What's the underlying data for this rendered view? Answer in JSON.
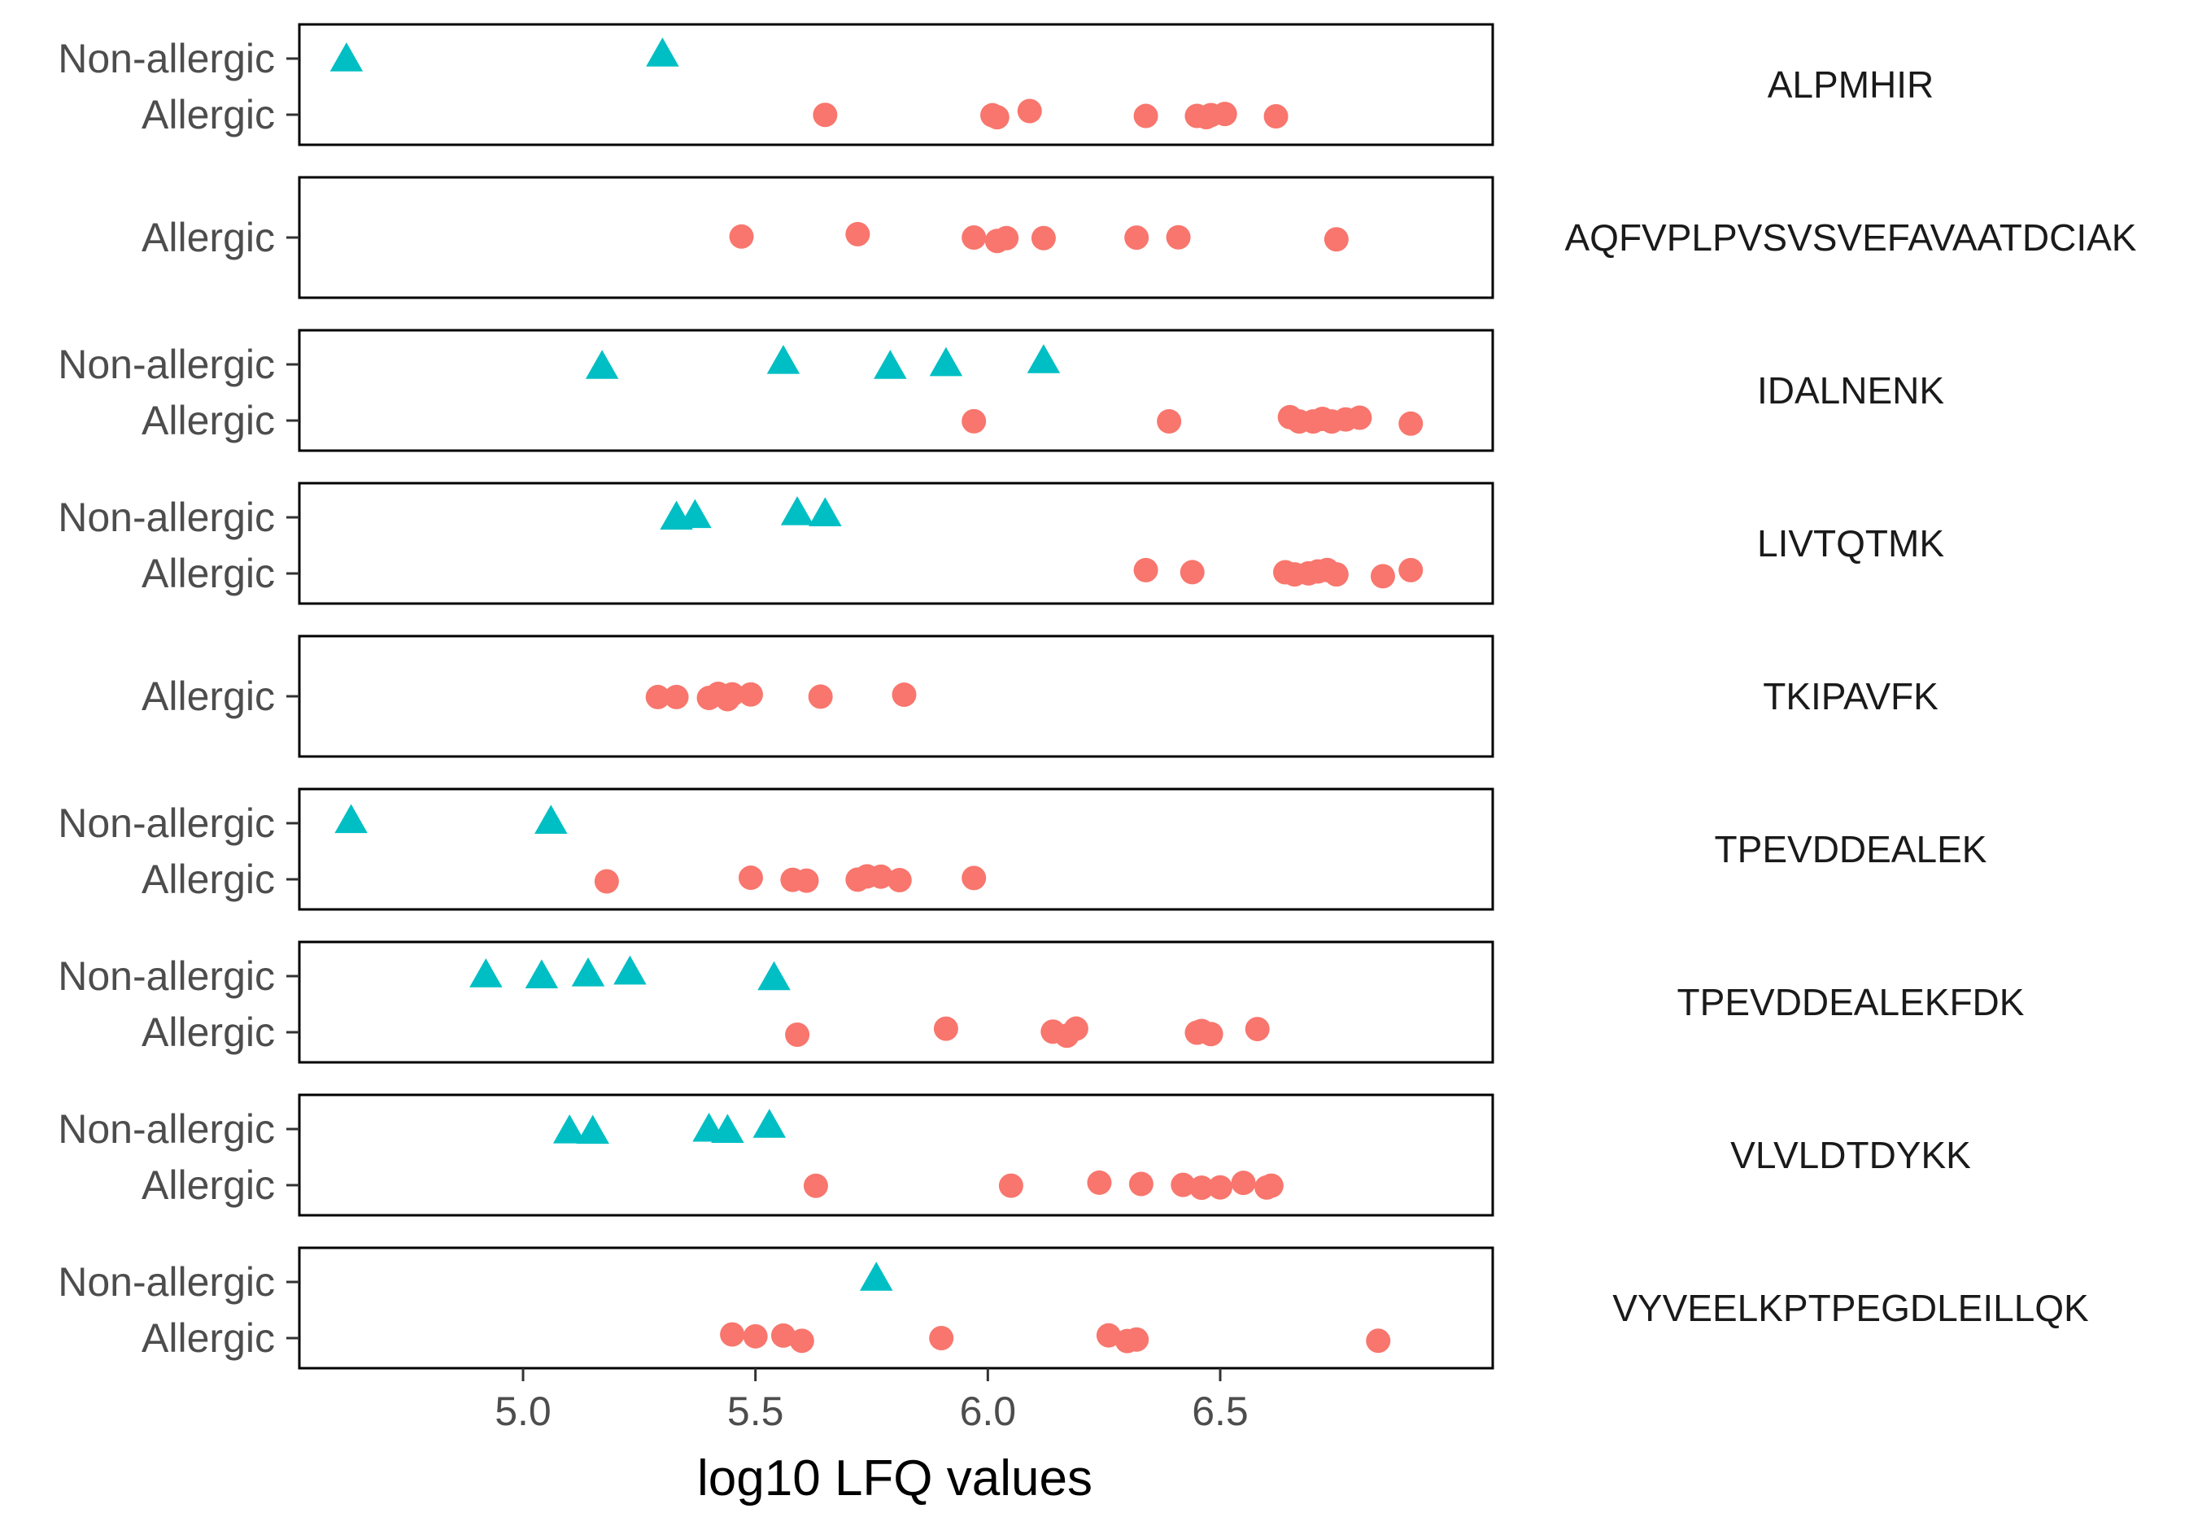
{
  "chart_data": {
    "type": "scatter",
    "xlabel": "log10 LFQ values",
    "ylabel": "",
    "xlim": [
      4.5,
      7.0
    ],
    "x_ticks": [
      "5.0",
      "5.5",
      "6.0",
      "6.5"
    ],
    "x_tick_values": [
      5.0,
      5.5,
      6.0,
      6.5
    ],
    "groups": [
      "Non-allergic",
      "Allergic"
    ],
    "colors": {
      "Non-allergic": "#00bfc4",
      "Allergic": "#f8766d"
    },
    "shapes": {
      "Non-allergic": "triangle",
      "Allergic": "circle"
    },
    "grid": false,
    "legend": "none",
    "panels": [
      {
        "label": "ALPMHIR",
        "series": [
          {
            "group": "Non-allergic",
            "x": [
              4.62,
              5.3
            ]
          },
          {
            "group": "Allergic",
            "x": [
              5.65,
              6.01,
              6.02,
              6.09,
              6.34,
              6.45,
              6.47,
              6.48,
              6.51,
              6.62
            ]
          }
        ]
      },
      {
        "label": "AQFVPLPVSVSVEFAVAATDCIAK",
        "series": [
          {
            "group": "Allergic",
            "x": [
              5.47,
              5.72,
              5.97,
              6.02,
              6.04,
              6.12,
              6.32,
              6.41,
              6.75
            ]
          }
        ]
      },
      {
        "label": "IDALNENK",
        "series": [
          {
            "group": "Non-allergic",
            "x": [
              5.17,
              5.56,
              5.79,
              5.91,
              6.12
            ]
          },
          {
            "group": "Allergic",
            "x": [
              5.97,
              6.39,
              6.65,
              6.67,
              6.7,
              6.72,
              6.74,
              6.77,
              6.8,
              6.91
            ]
          }
        ]
      },
      {
        "label": "LIVTQTMK",
        "series": [
          {
            "group": "Non-allergic",
            "x": [
              5.33,
              5.37,
              5.59,
              5.65
            ]
          },
          {
            "group": "Allergic",
            "x": [
              6.34,
              6.44,
              6.64,
              6.66,
              6.69,
              6.71,
              6.73,
              6.75,
              6.85,
              6.91
            ]
          }
        ]
      },
      {
        "label": "TKIPAVFK",
        "series": [
          {
            "group": "Allergic",
            "x": [
              5.29,
              5.33,
              5.4,
              5.42,
              5.44,
              5.45,
              5.49,
              5.64,
              5.82
            ]
          }
        ]
      },
      {
        "label": "TPEVDDEALEK",
        "series": [
          {
            "group": "Non-allergic",
            "x": [
              4.63,
              5.06
            ]
          },
          {
            "group": "Allergic",
            "x": [
              5.18,
              5.49,
              5.58,
              5.61,
              5.72,
              5.74,
              5.77,
              5.81,
              5.97
            ]
          }
        ]
      },
      {
        "label": "TPEVDDEALEKFDK",
        "series": [
          {
            "group": "Non-allergic",
            "x": [
              4.92,
              5.04,
              5.14,
              5.23,
              5.54
            ]
          },
          {
            "group": "Allergic",
            "x": [
              5.59,
              5.91,
              6.14,
              6.17,
              6.19,
              6.45,
              6.46,
              6.48,
              6.58
            ]
          }
        ]
      },
      {
        "label": "VLVLDTDYKK",
        "series": [
          {
            "group": "Non-allergic",
            "x": [
              5.1,
              5.15,
              5.4,
              5.44,
              5.53
            ]
          },
          {
            "group": "Allergic",
            "x": [
              5.63,
              6.05,
              6.24,
              6.33,
              6.42,
              6.46,
              6.5,
              6.55,
              6.6,
              6.61
            ]
          }
        ]
      },
      {
        "label": "VYVEELKPTPEGDLEILLQK",
        "series": [
          {
            "group": "Non-allergic",
            "x": [
              5.76
            ]
          },
          {
            "group": "Allergic",
            "x": [
              5.45,
              5.5,
              5.56,
              5.6,
              5.9,
              6.26,
              6.3,
              6.32,
              6.84
            ]
          }
        ]
      }
    ]
  }
}
